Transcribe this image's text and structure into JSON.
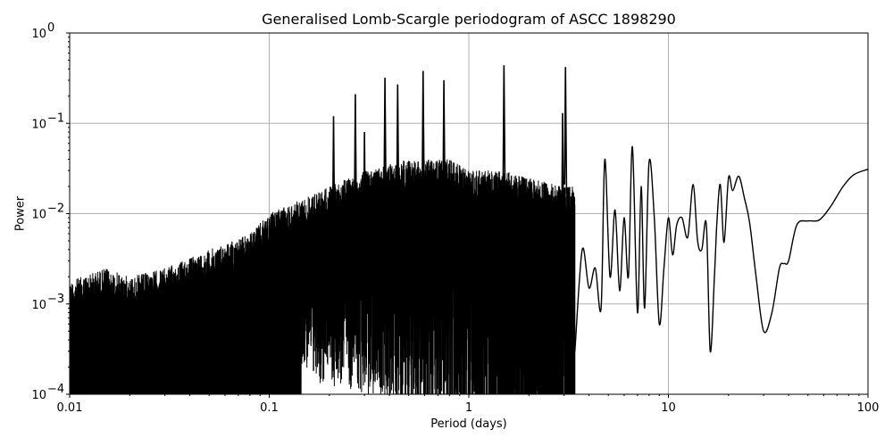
{
  "chart_data": {
    "type": "line",
    "title": "Generalised Lomb-Scargle periodogram of ASCC 1898290",
    "xlabel": "Period (days)",
    "ylabel": "Power",
    "xscale": "log",
    "yscale": "log",
    "xlim": [
      0.01,
      100
    ],
    "ylim": [
      0.0001,
      1
    ],
    "grid": true,
    "legend": null,
    "x_ticks": [
      "0.01",
      "0.1",
      "1",
      "10",
      "100"
    ],
    "y_ticks": [
      {
        "base": "10",
        "exp": "0",
        "value": 1
      },
      {
        "base": "10",
        "exp": "−1",
        "value": 0.1
      },
      {
        "base": "10",
        "exp": "−2",
        "value": 0.01
      },
      {
        "base": "10",
        "exp": "−3",
        "value": 0.001
      },
      {
        "base": "10",
        "exp": "−4",
        "value": 0.0001
      }
    ],
    "noise_envelope": {
      "description": "dense spiky periodogram; upper envelope of peaks by period",
      "period": [
        0.01,
        0.015,
        0.02,
        0.03,
        0.05,
        0.08,
        0.1,
        0.15,
        0.2,
        0.3,
        0.5,
        0.8,
        1.0,
        1.5,
        2.0,
        3.0
      ],
      "upper_power": [
        0.0018,
        0.0025,
        0.002,
        0.0025,
        0.004,
        0.006,
        0.01,
        0.015,
        0.02,
        0.03,
        0.04,
        0.04,
        0.03,
        0.03,
        0.025,
        0.02
      ]
    },
    "notable_peaks": [
      {
        "period": 0.21,
        "power": 0.12
      },
      {
        "period": 0.27,
        "power": 0.21
      },
      {
        "period": 0.3,
        "power": 0.08
      },
      {
        "period": 0.38,
        "power": 0.32
      },
      {
        "period": 0.44,
        "power": 0.27
      },
      {
        "period": 0.59,
        "power": 0.38
      },
      {
        "period": 0.75,
        "power": 0.3
      },
      {
        "period": 1.5,
        "power": 0.44
      },
      {
        "period": 3.05,
        "power": 0.42
      },
      {
        "period": 2.95,
        "power": 0.13
      }
    ],
    "smooth_curve": {
      "period": [
        3.4,
        3.7,
        4.0,
        4.3,
        4.6,
        4.8,
        5.1,
        5.4,
        5.7,
        6.0,
        6.3,
        6.6,
        7.0,
        7.3,
        7.6,
        8.0,
        8.5,
        9.0,
        9.5,
        10.0,
        10.5,
        11.0,
        11.7,
        12.5,
        13.3,
        14.0,
        14.7,
        15.5,
        16.2,
        17.0,
        17.5,
        18.2,
        19.0,
        20.0,
        21.0,
        22.5,
        24.0,
        25.5,
        27.5,
        30.0,
        33.0,
        36.0,
        38.0,
        40.0,
        44.0,
        50.0,
        57.0,
        65.0,
        75.0,
        85.0,
        100.0
      ],
      "power": [
        0.0003,
        0.004,
        0.0015,
        0.0025,
        0.0009,
        0.04,
        0.002,
        0.011,
        0.0014,
        0.009,
        0.002,
        0.055,
        0.0008,
        0.02,
        0.0009,
        0.037,
        0.009,
        0.0006,
        0.0025,
        0.009,
        0.0035,
        0.0075,
        0.009,
        0.0055,
        0.021,
        0.005,
        0.004,
        0.0075,
        0.0003,
        0.002,
        0.008,
        0.021,
        0.0048,
        0.025,
        0.018,
        0.026,
        0.015,
        0.008,
        0.002,
        0.0005,
        0.0008,
        0.0025,
        0.0028,
        0.003,
        0.0075,
        0.0083,
        0.0085,
        0.012,
        0.02,
        0.027,
        0.031
      ]
    }
  }
}
